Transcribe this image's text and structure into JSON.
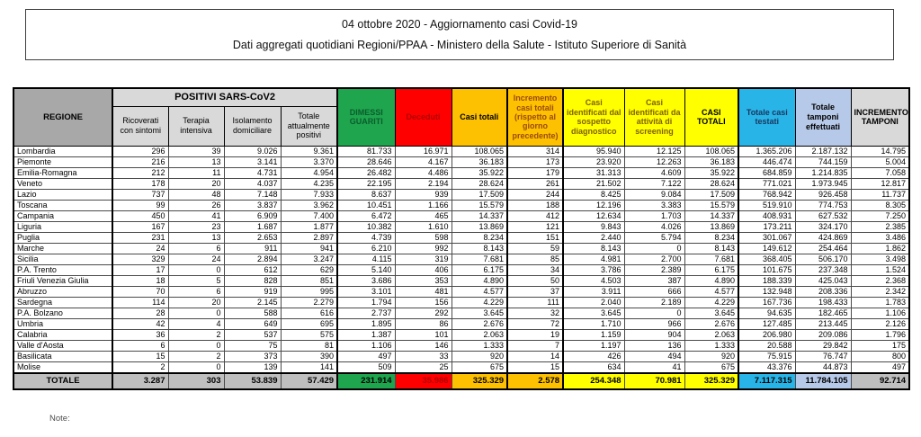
{
  "title": {
    "line1": "04 ottobre 2020 - Aggiornamento casi Covid-19",
    "line2": "Dati aggregati quotidiani Regioni/PPAA - Ministero della Salute - Istituto Superiore di Sanità"
  },
  "table": {
    "header": {
      "regione": "REGIONE",
      "positivi_group": "POSITIVI SARS-CoV2",
      "columns": [
        "Ricoverati con sintomi",
        "Terapia intensiva",
        "Isolamento domiciliare",
        "Totale attualmente positivi",
        "DIMESSI GUARITI",
        "Deceduti",
        "Casi totali",
        "Incremento casi totali (rispetto al giorno precedente)",
        "Casi identificati dal sospetto diagnostico",
        "Casi identificati da attività di screening",
        "CASI TOTALI",
        "Totale casi testati",
        "Totale tamponi effettuati",
        "INCREMENTO TAMPONI"
      ]
    },
    "rows": [
      {
        "regione": "Lombardia",
        "values": [
          "296",
          "39",
          "9.026",
          "9.361",
          "81.733",
          "16.971",
          "108.065",
          "314",
          "95.940",
          "12.125",
          "108.065",
          "1.365.206",
          "2.187.132",
          "14.795"
        ]
      },
      {
        "regione": "Piemonte",
        "values": [
          "216",
          "13",
          "3.141",
          "3.370",
          "28.646",
          "4.167",
          "36.183",
          "173",
          "23.920",
          "12.263",
          "36.183",
          "446.474",
          "744.159",
          "5.004"
        ]
      },
      {
        "regione": "Emilia-Romagna",
        "values": [
          "212",
          "11",
          "4.731",
          "4.954",
          "26.482",
          "4.486",
          "35.922",
          "179",
          "31.313",
          "4.609",
          "35.922",
          "684.859",
          "1.214.835",
          "7.058"
        ]
      },
      {
        "regione": "Veneto",
        "values": [
          "178",
          "20",
          "4.037",
          "4.235",
          "22.195",
          "2.194",
          "28.624",
          "261",
          "21.502",
          "7.122",
          "28.624",
          "771.021",
          "1.973.945",
          "12.817"
        ]
      },
      {
        "regione": "Lazio",
        "values": [
          "737",
          "48",
          "7.148",
          "7.933",
          "8.637",
          "939",
          "17.509",
          "244",
          "8.425",
          "9.084",
          "17.509",
          "768.942",
          "926.458",
          "11.737"
        ]
      },
      {
        "regione": "Toscana",
        "values": [
          "99",
          "26",
          "3.837",
          "3.962",
          "10.451",
          "1.166",
          "15.579",
          "188",
          "12.196",
          "3.383",
          "15.579",
          "519.910",
          "774.753",
          "8.305"
        ]
      },
      {
        "regione": "Campania",
        "values": [
          "450",
          "41",
          "6.909",
          "7.400",
          "6.472",
          "465",
          "14.337",
          "412",
          "12.634",
          "1.703",
          "14.337",
          "408.931",
          "627.532",
          "7.250"
        ]
      },
      {
        "regione": "Liguria",
        "values": [
          "167",
          "23",
          "1.687",
          "1.877",
          "10.382",
          "1.610",
          "13.869",
          "121",
          "9.843",
          "4.026",
          "13.869",
          "173.211",
          "324.170",
          "2.385"
        ]
      },
      {
        "regione": "Puglia",
        "values": [
          "231",
          "13",
          "2.653",
          "2.897",
          "4.739",
          "598",
          "8.234",
          "151",
          "2.440",
          "5.794",
          "8.234",
          "301.067",
          "424.869",
          "3.486"
        ]
      },
      {
        "regione": "Marche",
        "values": [
          "24",
          "6",
          "911",
          "941",
          "6.210",
          "992",
          "8.143",
          "59",
          "8.143",
          "0",
          "8.143",
          "149.612",
          "254.464",
          "1.862"
        ]
      },
      {
        "regione": "Sicilia",
        "values": [
          "329",
          "24",
          "2.894",
          "3.247",
          "4.115",
          "319",
          "7.681",
          "85",
          "4.981",
          "2.700",
          "7.681",
          "368.405",
          "506.170",
          "3.498"
        ]
      },
      {
        "regione": "P.A. Trento",
        "values": [
          "17",
          "0",
          "612",
          "629",
          "5.140",
          "406",
          "6.175",
          "34",
          "3.786",
          "2.389",
          "6.175",
          "101.675",
          "237.348",
          "1.524"
        ]
      },
      {
        "regione": "Friuli Venezia Giulia",
        "values": [
          "18",
          "5",
          "828",
          "851",
          "3.686",
          "353",
          "4.890",
          "50",
          "4.503",
          "387",
          "4.890",
          "188.339",
          "425.043",
          "2.368"
        ]
      },
      {
        "regione": "Abruzzo",
        "values": [
          "70",
          "6",
          "919",
          "995",
          "3.101",
          "481",
          "4.577",
          "37",
          "3.911",
          "666",
          "4.577",
          "132.948",
          "208.336",
          "2.342"
        ]
      },
      {
        "regione": "Sardegna",
        "values": [
          "114",
          "20",
          "2.145",
          "2.279",
          "1.794",
          "156",
          "4.229",
          "111",
          "2.040",
          "2.189",
          "4.229",
          "167.736",
          "198.433",
          "1.783"
        ]
      },
      {
        "regione": "P.A. Bolzano",
        "values": [
          "28",
          "0",
          "588",
          "616",
          "2.737",
          "292",
          "3.645",
          "32",
          "3.645",
          "0",
          "3.645",
          "94.635",
          "182.465",
          "1.106"
        ]
      },
      {
        "regione": "Umbria",
        "values": [
          "42",
          "4",
          "649",
          "695",
          "1.895",
          "86",
          "2.676",
          "72",
          "1.710",
          "966",
          "2.676",
          "127.485",
          "213.445",
          "2.126"
        ]
      },
      {
        "regione": "Calabria",
        "values": [
          "36",
          "2",
          "537",
          "575",
          "1.387",
          "101",
          "2.063",
          "19",
          "1.159",
          "904",
          "2.063",
          "206.980",
          "209.086",
          "1.796"
        ]
      },
      {
        "regione": "Valle d'Aosta",
        "values": [
          "6",
          "0",
          "75",
          "81",
          "1.106",
          "146",
          "1.333",
          "7",
          "1.197",
          "136",
          "1.333",
          "20.588",
          "29.842",
          "175"
        ]
      },
      {
        "regione": "Basilicata",
        "values": [
          "15",
          "2",
          "373",
          "390",
          "497",
          "33",
          "920",
          "14",
          "426",
          "494",
          "920",
          "75.915",
          "76.747",
          "800"
        ]
      },
      {
        "regione": "Molise",
        "values": [
          "2",
          "0",
          "139",
          "141",
          "509",
          "25",
          "675",
          "15",
          "634",
          "41",
          "675",
          "43.376",
          "44.873",
          "497"
        ]
      }
    ],
    "totale": {
      "label": "TOTALE",
      "values": [
        "3.287",
        "303",
        "53.839",
        "57.429",
        "231.914",
        "35.986",
        "325.329",
        "2.578",
        "254.348",
        "70.981",
        "325.329",
        "7.117.315",
        "11.784.105",
        "92.714"
      ]
    }
  },
  "note_label": "Note:",
  "colors": {
    "green": "#1fa54e",
    "green-dark": "#0a5d2c",
    "red": "#fe0000",
    "red-dark": "#b30000",
    "orange": "#fdc101",
    "rust": "#9c4a0a",
    "yellow": "#ffff00",
    "olive": "#7f6000",
    "cyan": "#29b4e8",
    "navy": "#17375e",
    "periwinkle": "#b7c9e8",
    "gray-mid": "#a8a8a8",
    "gray-light": "#d9d9d9",
    "gray-total": "#bfbfbf"
  }
}
